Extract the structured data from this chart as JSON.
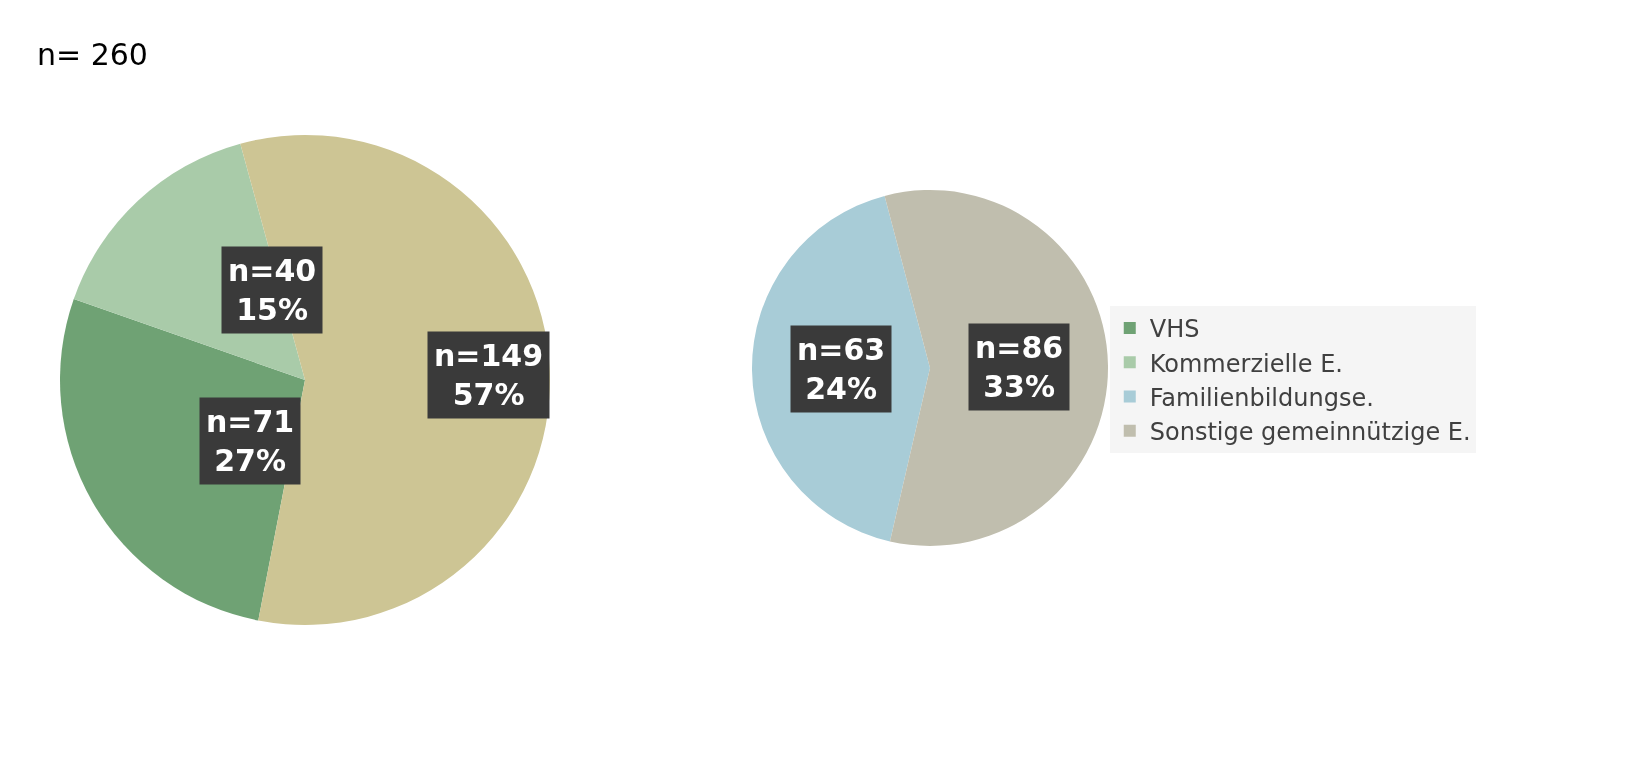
{
  "chart_data": [
    {
      "type": "pie",
      "title": "n= 260",
      "categories": [
        "VHS",
        "Kommerzielle E.",
        null
      ],
      "values": [
        71,
        40,
        149
      ],
      "colors": [
        "#6fa274",
        "#a9cba9",
        "#cdc594"
      ],
      "value_labels": [
        "n=71\n27%",
        "n=40\n15%",
        "n=149\n57%"
      ],
      "legend": "right"
    },
    {
      "type": "pie",
      "categories": [
        "Familienbildungse.",
        "Sonstige gemeinnützige E."
      ],
      "values": [
        63,
        86
      ],
      "colors": [
        "#a8ccd7",
        "#c0beae"
      ],
      "value_labels": [
        "n=63\n24%",
        "n=86\n33%"
      ],
      "legend": "right"
    }
  ]
}
